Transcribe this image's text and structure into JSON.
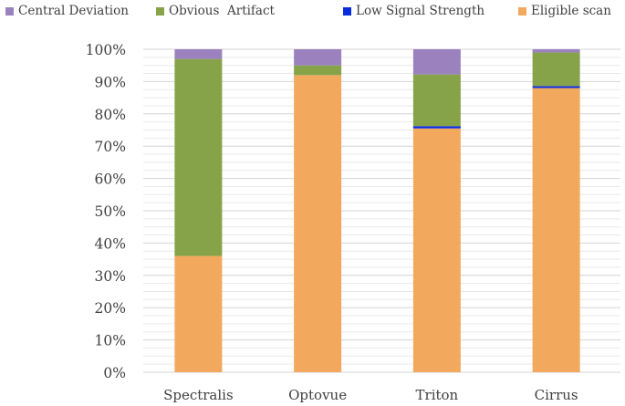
{
  "chart_data": {
    "type": "bar",
    "stacked": true,
    "categories": [
      "Spectralis",
      "Optovue",
      "Triton",
      "Cirrus"
    ],
    "series": [
      {
        "name": "Eligible scan",
        "color": "#f2a95e",
        "values": [
          36,
          92,
          75.5,
          88
        ]
      },
      {
        "name": "Low Signal Strength",
        "color": "#0a2ce0",
        "values": [
          0,
          0,
          0.7,
          0.6
        ]
      },
      {
        "name": "Obvious  Artifact",
        "color": "#86a34a",
        "values": [
          61,
          3,
          16,
          10.4
        ]
      },
      {
        "name": "Central Deviation",
        "color": "#9b82bf",
        "values": [
          3,
          5,
          7.8,
          1
        ]
      }
    ],
    "legend_order": [
      "Central Deviation",
      "Obvious  Artifact",
      "Low Signal Strength",
      "Eligible scan"
    ],
    "yticks": [
      "0%",
      "10%",
      "20%",
      "30%",
      "40%",
      "50%",
      "60%",
      "70%",
      "80%",
      "90%",
      "100%"
    ],
    "ylim": [
      0,
      100
    ],
    "legend_position": "top",
    "grid": true
  }
}
